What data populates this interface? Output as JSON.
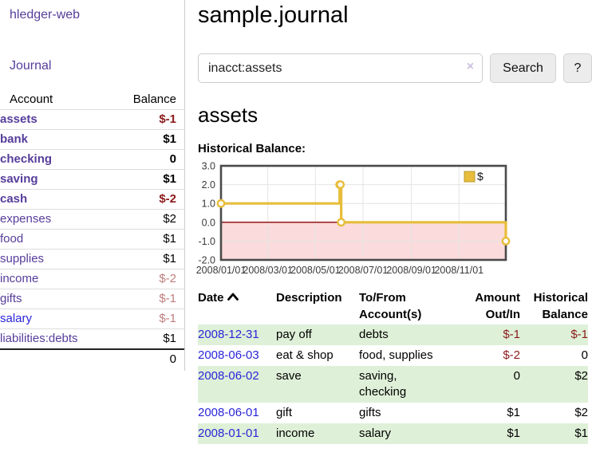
{
  "sidebar": {
    "app_title": "hledger-web",
    "nav": {
      "journal_label": "Journal"
    },
    "table": {
      "account_header": "Account",
      "balance_header": "Balance"
    },
    "accounts": [
      {
        "name": "assets",
        "balance": "$-1",
        "depth": 1,
        "bold": true,
        "balance_tone": "negative-strong"
      },
      {
        "name": "bank",
        "balance": "$1",
        "depth": 2,
        "bold": true,
        "balance_tone": "normal"
      },
      {
        "name": "checking",
        "balance": "0",
        "depth": 3,
        "bold": true,
        "balance_tone": "normal"
      },
      {
        "name": "saving",
        "balance": "$1",
        "depth": 3,
        "bold": true,
        "balance_tone": "normal"
      },
      {
        "name": "cash",
        "balance": "$-2",
        "depth": 2,
        "bold": true,
        "balance_tone": "negative-strong"
      },
      {
        "name": "expenses",
        "balance": "$2",
        "depth": 1,
        "bold": false,
        "balance_tone": "normal"
      },
      {
        "name": "food",
        "balance": "$1",
        "depth": 2,
        "bold": false,
        "balance_tone": "normal"
      },
      {
        "name": "supplies",
        "balance": "$1",
        "depth": 2,
        "bold": false,
        "balance_tone": "normal"
      },
      {
        "name": "income",
        "balance": "$-2",
        "depth": 1,
        "bold": false,
        "balance_tone": "negative-dim"
      },
      {
        "name": "gifts",
        "balance": "$-1",
        "depth": 2,
        "bold": false,
        "balance_tone": "negative-dim"
      },
      {
        "name": "salary",
        "balance": "$-1",
        "depth": 2,
        "bold": false,
        "balance_tone": "negative-dim",
        "link_tone": "blue"
      },
      {
        "name": "liabilities:debts",
        "balance": "$1",
        "depth": 1,
        "bold": false,
        "balance_tone": "normal"
      }
    ],
    "total": "0"
  },
  "header": {
    "title": "sample.journal"
  },
  "search": {
    "value": "inacct:assets",
    "clear_icon": "×",
    "button_label": "Search",
    "help_label": "?"
  },
  "account_page": {
    "title": "assets",
    "chart_label": "Historical Balance:"
  },
  "chart_data": {
    "type": "line",
    "step": true,
    "title": "Historical Balance",
    "series": [
      {
        "name": "$",
        "color": "#e7bd3b",
        "points": [
          {
            "date": "2008-01-01",
            "value": 1
          },
          {
            "date": "2008-06-01",
            "value": 2
          },
          {
            "date": "2008-06-02",
            "value": 2
          },
          {
            "date": "2008-06-03",
            "value": 0
          },
          {
            "date": "2008-12-31",
            "value": -1
          }
        ]
      }
    ],
    "x_range": [
      "2008-01-01",
      "2008-12-31"
    ],
    "ylim": [
      -2,
      3
    ],
    "y_ticks": [
      "3.0",
      "2.0",
      "1.0",
      "0.0",
      "-1.0",
      "-2.0"
    ],
    "x_ticks": [
      {
        "date": "2008-01-01",
        "label": "2008/01/01"
      },
      {
        "date": "2008-03-01",
        "label": "2008/03/01"
      },
      {
        "date": "2008-05-01",
        "label": "2008/05/01"
      },
      {
        "date": "2008-07-01",
        "label": "2008/07/01"
      },
      {
        "date": "2008-09-01",
        "label": "2008/09/01"
      },
      {
        "date": "2008-11-01",
        "label": "2008/11/01"
      }
    ],
    "legend": {
      "label": "$",
      "position": "top-right"
    },
    "grid": true,
    "negative_region_fill": "#fbdbdb",
    "zero_line_color": "#8b0000"
  },
  "transactions": {
    "headers": {
      "date": "Date",
      "description": "Description",
      "to_from": "To/From Account(s)",
      "amount": "Amount Out/In",
      "balance": "Historical Balance"
    },
    "rows": [
      {
        "date": "2008-12-31",
        "description": "pay off",
        "to_from": "debts",
        "amount": "$-1",
        "balance": "$-1",
        "amount_tone": "negative",
        "balance_tone": "negative"
      },
      {
        "date": "2008-06-03",
        "description": "eat & shop",
        "to_from": "food, supplies",
        "amount": "$-2",
        "balance": "0",
        "amount_tone": "negative",
        "balance_tone": "normal"
      },
      {
        "date": "2008-06-02",
        "description": "save",
        "to_from": "saving,\nchecking",
        "amount": "0",
        "balance": "$2",
        "amount_tone": "normal",
        "balance_tone": "normal"
      },
      {
        "date": "2008-06-01",
        "description": "gift",
        "to_from": "gifts",
        "amount": "$1",
        "balance": "$2",
        "amount_tone": "normal",
        "balance_tone": "normal"
      },
      {
        "date": "2008-01-01",
        "description": "income",
        "to_from": "salary",
        "amount": "$1",
        "balance": "$1",
        "amount_tone": "normal",
        "balance_tone": "normal"
      }
    ]
  },
  "colors": {
    "link_purple": "#563d9b",
    "link_blue": "#2a25d9",
    "negative_strong": "#8b1a1a",
    "negative_dim": "#c17d7d",
    "row_stripe_green": "#dff0d8",
    "chart_line_gold": "#e7bd3b",
    "chart_negative_area": "#fbdbdb",
    "chart_zero_line": "#8b0000",
    "chart_border": "#4a4a4a"
  }
}
